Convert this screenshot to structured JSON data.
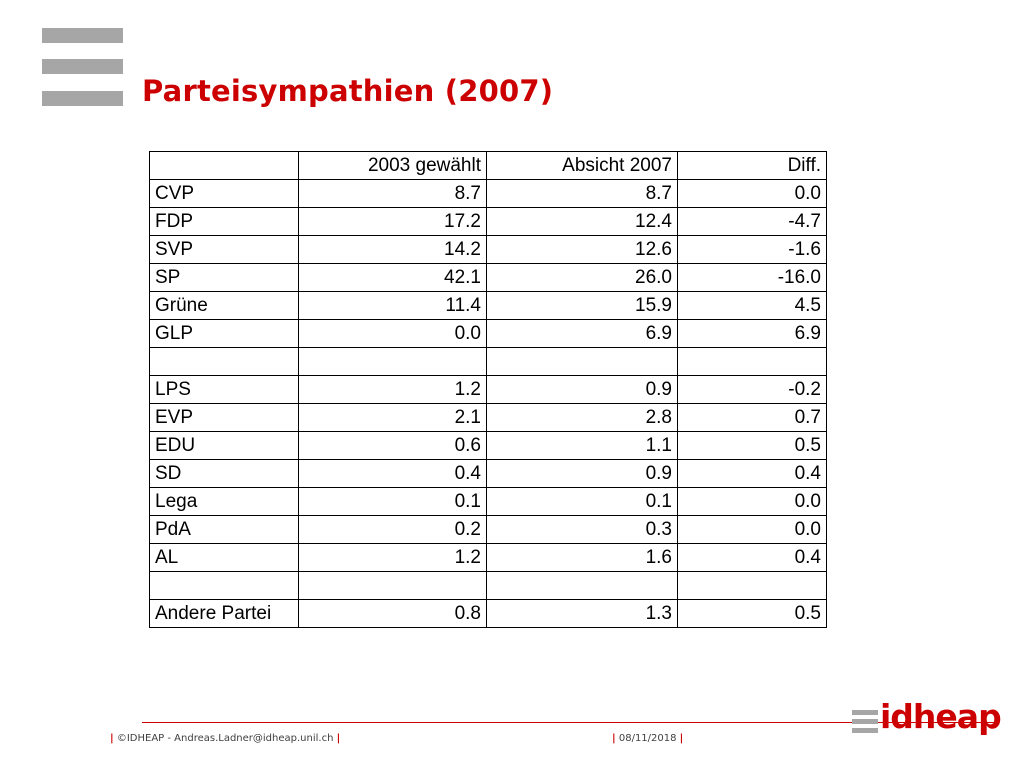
{
  "slide": {
    "title": "Parteisympathien (2007)"
  },
  "table": {
    "headers": [
      "",
      "2003 gewählt",
      "Absicht 2007",
      "Diff."
    ],
    "rows": [
      [
        "CVP",
        "8.7",
        "8.7",
        "0.0"
      ],
      [
        "FDP",
        "17.2",
        "12.4",
        "-4.7"
      ],
      [
        "SVP",
        "14.2",
        "12.6",
        "-1.6"
      ],
      [
        "SP",
        "42.1",
        "26.0",
        "-16.0"
      ],
      [
        "Grüne",
        "11.4",
        "15.9",
        "4.5"
      ],
      [
        "GLP",
        "0.0",
        "6.9",
        "6.9"
      ],
      [
        "",
        "",
        "",
        ""
      ],
      [
        "LPS",
        "1.2",
        "0.9",
        "-0.2"
      ],
      [
        "EVP",
        "2.1",
        "2.8",
        "0.7"
      ],
      [
        "EDU",
        "0.6",
        "1.1",
        "0.5"
      ],
      [
        "SD",
        "0.4",
        "0.9",
        "0.4"
      ],
      [
        "Lega",
        "0.1",
        "0.1",
        "0.0"
      ],
      [
        "PdA",
        "0.2",
        "0.3",
        "0.0"
      ],
      [
        "AL",
        "1.2",
        "1.6",
        "0.4"
      ],
      [
        "",
        "",
        "",
        ""
      ],
      [
        "Andere Partei",
        "0.8",
        "1.3",
        "0.5"
      ]
    ]
  },
  "footer": {
    "left": "©IDHEAP - Andreas.Ladner@idheap.unil.ch",
    "date": "08/11/2018",
    "pipe": "|"
  },
  "logo": {
    "text": "idheap",
    "accent_color": "#cc0000",
    "bar_color": "#a6a6a6"
  }
}
